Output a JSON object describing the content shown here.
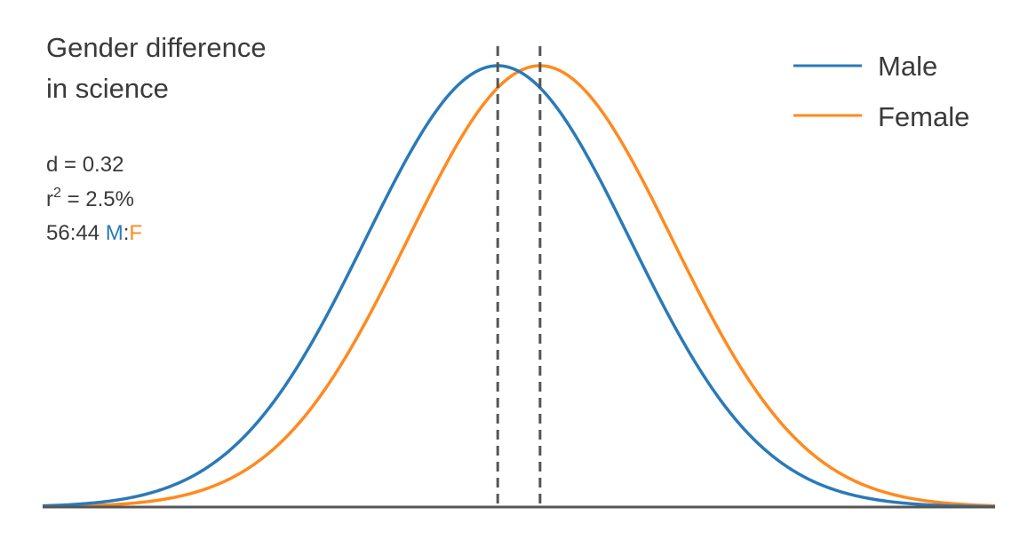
{
  "chart_data": {
    "type": "line",
    "title_lines": [
      "Gender difference",
      "in science"
    ],
    "xlabel": "",
    "ylabel": "",
    "x_range": [
      -3.6,
      3.6
    ],
    "grid": false,
    "legend_position": "top-right",
    "series": [
      {
        "name": "Male",
        "color": "#2a7ab8",
        "mean": -0.16,
        "sd": 1.0
      },
      {
        "name": "Female",
        "color": "#ff8a1f",
        "mean": 0.16,
        "sd": 1.0
      }
    ],
    "mean_markers": [
      -0.16,
      0.16
    ],
    "stats": {
      "d": "d = 0.32",
      "r2_prefix": "r",
      "r2_sup": "2",
      "r2_suffix": " = 2.5%",
      "ratio_prefix": "56:44 ",
      "ratio_m": "M",
      "ratio_sep": ":",
      "ratio_f": "F"
    }
  },
  "colors": {
    "male": "#2a7ab8",
    "female": "#ff8a1f",
    "axis": "#555555",
    "text": "#3a3a3a"
  }
}
